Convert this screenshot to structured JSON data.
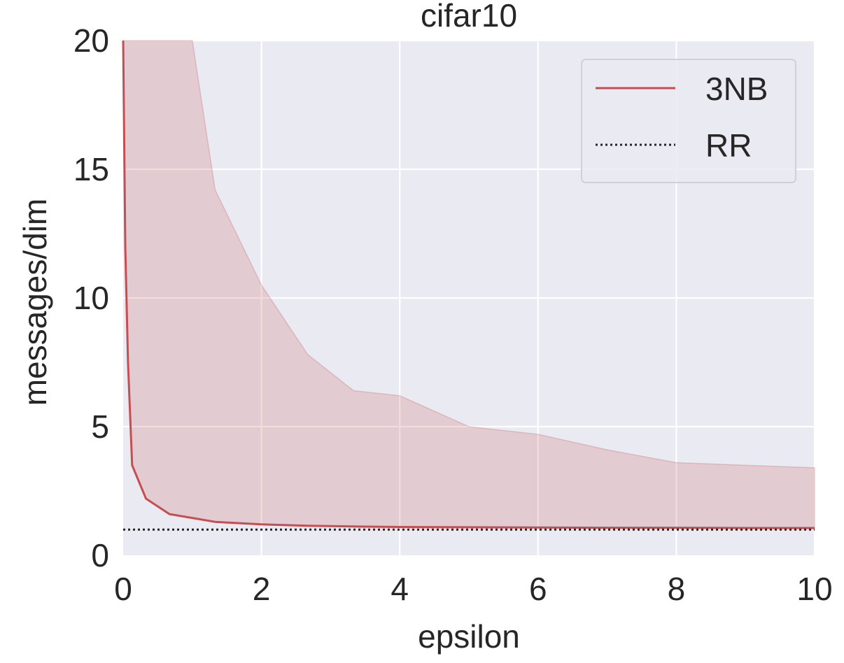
{
  "chart_data": {
    "type": "line",
    "title": "cifar10",
    "xlabel": "epsilon",
    "ylabel": "messages/dim",
    "xlim": [
      0,
      10
    ],
    "ylim": [
      0,
      20
    ],
    "xticks": [
      0,
      2,
      4,
      6,
      8,
      10
    ],
    "xtick_labels": [
      "0",
      "2",
      "4",
      "6",
      "8",
      "10"
    ],
    "yticks": [
      0,
      5,
      10,
      15,
      20
    ],
    "ytick_labels": [
      "0",
      "5",
      "10",
      "15",
      "20"
    ],
    "grid": true,
    "legend_position": "top-right",
    "series": [
      {
        "name": "3NB",
        "style": "solid",
        "color": "#c44e52",
        "x": [
          0,
          0.03,
          0.07,
          0.13,
          0.33,
          0.67,
          1.0,
          1.33,
          2.0,
          2.67,
          3.33,
          4.0,
          5.0,
          6.0,
          7.0,
          8.0,
          9.0,
          10.0
        ],
        "y": [
          20,
          12,
          7.5,
          3.5,
          2.2,
          1.6,
          1.45,
          1.3,
          1.2,
          1.15,
          1.12,
          1.1,
          1.09,
          1.08,
          1.07,
          1.07,
          1.06,
          1.06
        ],
        "band_upper": [
          20,
          20,
          20,
          20,
          20,
          20,
          20,
          14.2,
          10.5,
          7.8,
          6.4,
          6.2,
          5.0,
          4.7,
          4.1,
          3.6,
          3.5,
          3.4
        ],
        "band_lower": [
          20,
          12,
          7.5,
          3.5,
          2.2,
          1.6,
          1.45,
          1.3,
          1.2,
          1.15,
          1.12,
          1.1,
          1.09,
          1.08,
          1.07,
          1.07,
          1.06,
          1.06
        ]
      },
      {
        "name": "RR",
        "style": "dotted",
        "color": "#262626",
        "x": [
          0,
          10
        ],
        "y": [
          1,
          1
        ]
      }
    ],
    "colors": {
      "background": "#eaeaf2",
      "grid": "#ffffff",
      "band": "#c44e52",
      "text": "#262626"
    }
  }
}
